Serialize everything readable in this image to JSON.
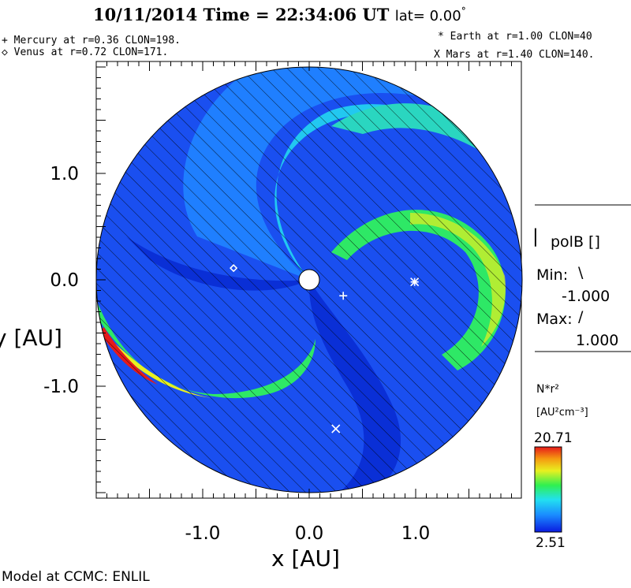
{
  "header": {
    "date": "10/11/2014",
    "time_text": "Time = 22:34:06 UT",
    "lat_text": "lat= 0.00",
    "degree": "°"
  },
  "planets_left": [
    "+ Mercury at r=0.36 CLON=198.",
    "◇ Venus at r=0.72 CLON=171."
  ],
  "planets_right": [
    "* Earth at  r=1.00 CLON=40",
    "X Mars at r=1.40 CLON=140."
  ],
  "panel": {
    "pol_label": "polB []",
    "pol_bar": "|",
    "min_label": "Min:",
    "min_sym": "\\",
    "min_value": "-1.000",
    "max_label": "Max:",
    "max_sym": "/",
    "max_value": "1.000",
    "colorbar_title": "N*r²",
    "colorbar_units": "[AU²cm⁻³]",
    "colorbar_max": "20.71",
    "colorbar_min": "2.51"
  },
  "footer": "Model at CCMC: ENLIL",
  "colors": {
    "low": "#0a2fd6",
    "mid_low": "#1f7fff",
    "mid": "#22c8f0",
    "high": "#2ee866",
    "very_high": "#e8f020",
    "max": "#e61a1a"
  },
  "chart_data": {
    "type": "heatmap",
    "title": "10/11/2014 Time = 22:34:06 UT lat= 0.00°",
    "xlabel": "x [AU]",
    "ylabel": "y [AU]",
    "xlim": [
      -2.0,
      2.0
    ],
    "ylim": [
      -2.0,
      2.0
    ],
    "x_ticks": [
      -1.0,
      0.0,
      1.0
    ],
    "y_ticks": [
      1.0,
      0.0,
      -1.0
    ],
    "x_tick_labels": [
      "-1.0",
      "0.0",
      "1.0"
    ],
    "y_tick_labels": [
      "1.0",
      "0.0",
      "-1.0"
    ],
    "colorbar": {
      "label": "N*r²",
      "units": "[AU²cm⁻³]",
      "min": 2.51,
      "max": 20.71
    },
    "planets": [
      {
        "name": "Sun",
        "x": 0.0,
        "y": 0.0,
        "marker": "disk"
      },
      {
        "name": "Mercury",
        "x": 0.32,
        "y": -0.15,
        "marker": "+"
      },
      {
        "name": "Venus",
        "x": -0.71,
        "y": 0.11,
        "marker": "◇"
      },
      {
        "name": "Earth",
        "x": 0.99,
        "y": -0.02,
        "marker": "*"
      },
      {
        "name": "Mars",
        "x": 0.25,
        "y": -1.4,
        "marker": "X"
      }
    ]
  }
}
